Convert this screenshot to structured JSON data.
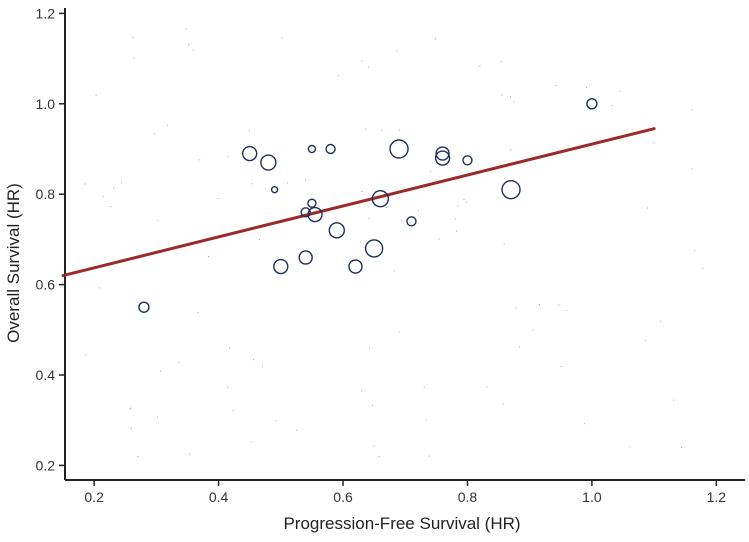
{
  "chart_data": {
    "type": "scatter",
    "title": "",
    "xlabel": "Progression-Free Survival (HR)",
    "ylabel": "Overall Survival (HR)",
    "xlim": [
      0.15,
      1.2
    ],
    "ylim": [
      0.17,
      1.25
    ],
    "xticks": [
      0.2,
      0.4,
      0.6,
      0.8,
      1.0,
      1.2
    ],
    "xtick_labels": [
      "0.2",
      "0.4",
      "0.6",
      "0.8",
      "1.0",
      "1.2"
    ],
    "yticks": [
      0.2,
      0.4,
      0.6,
      0.8,
      1.0,
      1.2
    ],
    "ytick_labels": [
      "0.2",
      "0.4",
      "0.6",
      "0.8",
      "1.0",
      "1.2"
    ],
    "grid": false,
    "point_color": "#1f2f5a",
    "line_color": "#9b2a2a",
    "regression_line": {
      "x": [
        0.15,
        1.1
      ],
      "y": [
        0.62,
        0.945
      ]
    },
    "points": [
      {
        "x": 0.28,
        "y": 0.55,
        "size": 5
      },
      {
        "x": 0.45,
        "y": 0.89,
        "size": 7
      },
      {
        "x": 0.48,
        "y": 0.87,
        "size": 7.5
      },
      {
        "x": 0.49,
        "y": 0.81,
        "size": 3
      },
      {
        "x": 0.5,
        "y": 0.64,
        "size": 7
      },
      {
        "x": 0.54,
        "y": 0.66,
        "size": 6.5
      },
      {
        "x": 0.54,
        "y": 0.76,
        "size": 4.5
      },
      {
        "x": 0.55,
        "y": 0.78,
        "size": 4
      },
      {
        "x": 0.55,
        "y": 0.9,
        "size": 3.5
      },
      {
        "x": 0.555,
        "y": 0.755,
        "size": 7
      },
      {
        "x": 0.58,
        "y": 0.9,
        "size": 4.5
      },
      {
        "x": 0.59,
        "y": 0.72,
        "size": 7.5
      },
      {
        "x": 0.62,
        "y": 0.64,
        "size": 6.5
      },
      {
        "x": 0.65,
        "y": 0.68,
        "size": 8.5
      },
      {
        "x": 0.66,
        "y": 0.79,
        "size": 8
      },
      {
        "x": 0.69,
        "y": 0.9,
        "size": 9
      },
      {
        "x": 0.71,
        "y": 0.74,
        "size": 4.5
      },
      {
        "x": 0.76,
        "y": 0.88,
        "size": 7
      },
      {
        "x": 0.76,
        "y": 0.89,
        "size": 6.5
      },
      {
        "x": 0.8,
        "y": 0.875,
        "size": 4.5
      },
      {
        "x": 0.87,
        "y": 0.81,
        "size": 9
      },
      {
        "x": 1.0,
        "y": 1.0,
        "size": 5
      }
    ]
  }
}
